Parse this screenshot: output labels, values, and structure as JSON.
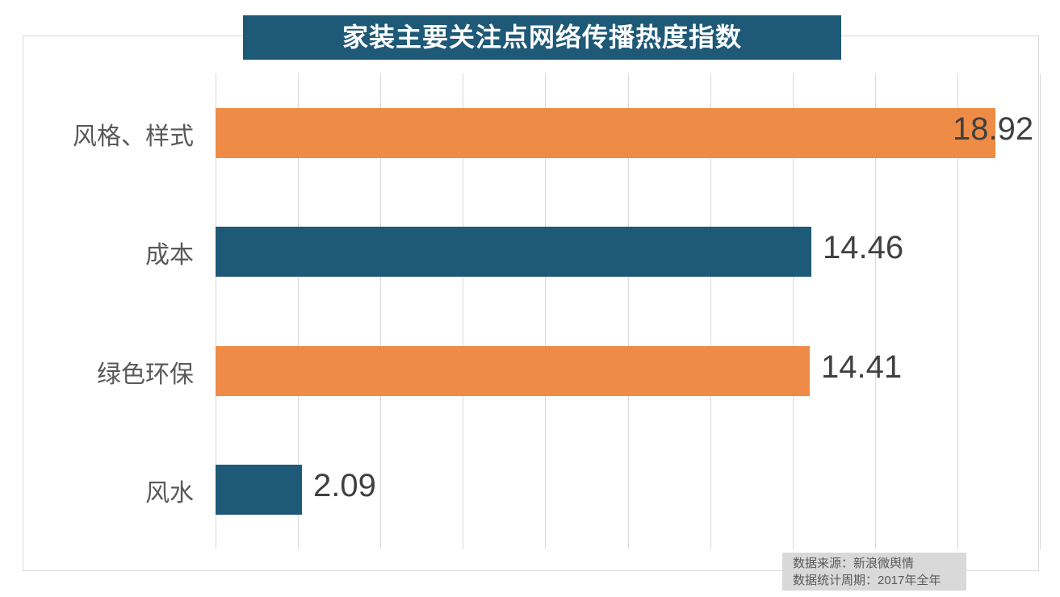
{
  "title": {
    "text": "家装主要关注点网络传播热度指数"
  },
  "colors": {
    "title_bg": "#1E5978",
    "title_text": "#FFFFFF",
    "orange": "#EE8C47",
    "teal": "#1E5978",
    "gridline": "#D9D9D9",
    "category_label": "#595959",
    "value_label": "#404040",
    "footer_bg": "#D9D9D9",
    "footer_text": "#595959"
  },
  "chart_data": {
    "type": "bar",
    "orientation": "horizontal",
    "title": "家装主要关注点网络传播热度指数",
    "categories": [
      "风格、样式",
      "成本",
      "绿色环保",
      "风水"
    ],
    "values": [
      18.92,
      14.46,
      14.41,
      2.09
    ],
    "value_labels": [
      "18.92",
      "14.46",
      "14.41",
      "2.09"
    ],
    "bar_colors": [
      "#EE8C47",
      "#1E5978",
      "#EE8C47",
      "#1E5978"
    ],
    "xlabel": "",
    "ylabel": "",
    "xlim": [
      0,
      20
    ],
    "grid_step": 2,
    "grid": "vertical-only",
    "legend": "none"
  },
  "footer": {
    "lines": [
      "数据来源：新浪微舆情",
      "数据统计周期：2017年全年"
    ]
  }
}
